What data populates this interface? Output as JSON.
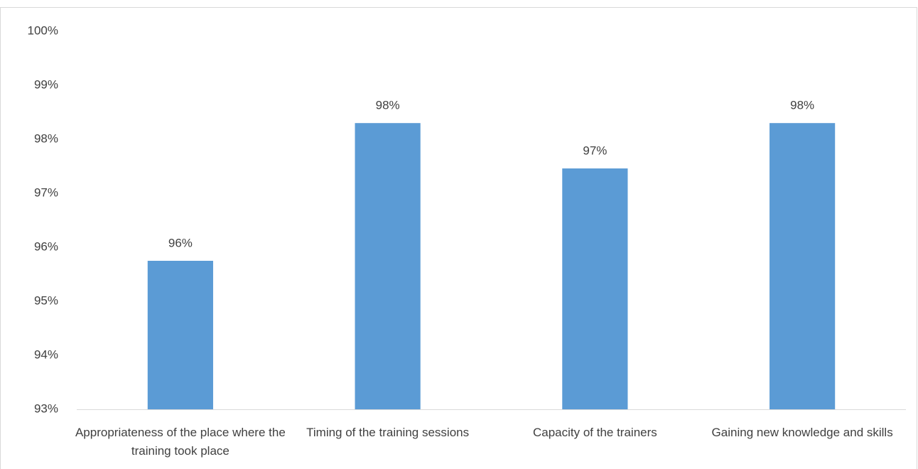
{
  "chart_data": {
    "type": "bar",
    "categories": [
      "Appropriateness of the place where the training took place",
      "Timing of the training sessions",
      "Capacity of the trainers",
      "Gaining new knowledge and skills"
    ],
    "values": [
      95.75,
      98.3,
      97.46,
      98.3
    ],
    "value_labels": [
      "96%",
      "98%",
      "97%",
      "98%"
    ],
    "color": "#5b9bd5",
    "ylim": [
      93,
      100
    ],
    "yticks": [
      {
        "value": 93,
        "label": "93%"
      },
      {
        "value": 94,
        "label": "94%"
      },
      {
        "value": 95,
        "label": "95%"
      },
      {
        "value": 96,
        "label": "96%"
      },
      {
        "value": 97,
        "label": "97%"
      },
      {
        "value": 98,
        "label": "98%"
      },
      {
        "value": 99,
        "label": "99%"
      },
      {
        "value": 100,
        "label": "100%"
      }
    ],
    "grid": false
  }
}
